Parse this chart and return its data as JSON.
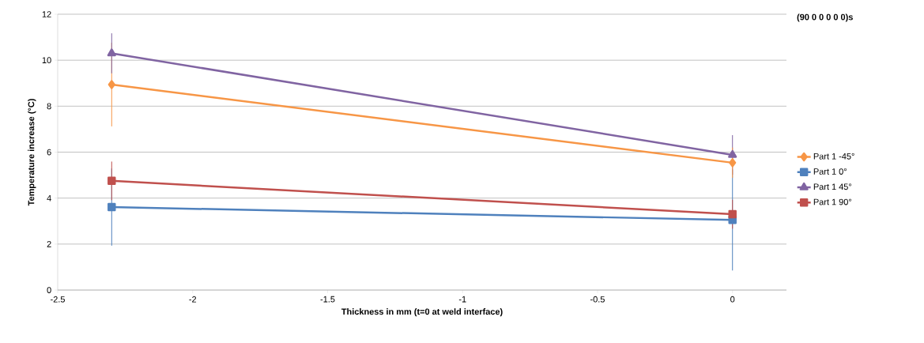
{
  "chart_data": {
    "type": "line",
    "title": "(90 0 0 0 0 0)s",
    "xlabel": "Thickness  in mm (t=0 at weld interface)",
    "ylabel": "Temperature increase (°C)",
    "x": [
      -2.3,
      0
    ],
    "series": [
      {
        "name": "Part 1 -45°",
        "color": "#f79646",
        "marker": "diamond",
        "values": [
          8.94,
          5.54
        ],
        "errors": [
          1.82,
          0.66
        ]
      },
      {
        "name": "Part 1 0°",
        "color": "#4f81bd",
        "marker": "square",
        "values": [
          3.61,
          3.05
        ],
        "errors": [
          1.68,
          2.2
        ]
      },
      {
        "name": "Part 1 45°",
        "color": "#8064a2",
        "marker": "triangle",
        "values": [
          10.3,
          5.88
        ],
        "errors": [
          0.87,
          0.86
        ]
      },
      {
        "name": "Part 1 90°",
        "color": "#c0504d",
        "marker": "square",
        "values": [
          4.75,
          3.3
        ],
        "errors": [
          0.84,
          0.63
        ]
      }
    ],
    "xlim": [
      -2.5,
      0.2
    ],
    "xticks": [
      -2.5,
      -2,
      -1.5,
      -1,
      -0.5,
      0
    ],
    "ylim": [
      0,
      12
    ],
    "yticks": [
      0,
      2,
      4,
      6,
      8,
      10,
      12
    ],
    "grid": "y",
    "legend": "right",
    "line_style": "solid"
  }
}
